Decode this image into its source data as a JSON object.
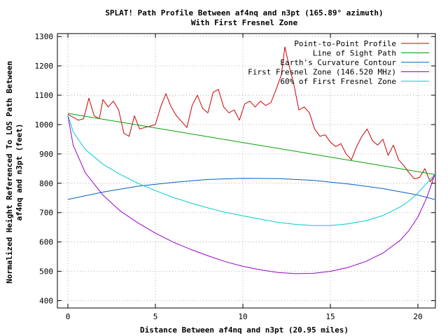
{
  "chart_data": {
    "type": "line",
    "title": "SPLAT! Path Profile Between af4nq and n3pt (165.89° azimuth)",
    "subtitle": "With First Fresnel Zone",
    "xlabel": "Distance Between af4nq and n3pt (20.95 miles)",
    "ylabel_lines": [
      "Normalized Height Referenced To LOS Path Between",
      "af4nq and n3pt (feet)"
    ],
    "xlim": [
      -0.6,
      21.0
    ],
    "ylim": [
      375,
      1310
    ],
    "x_ticks": [
      0,
      5,
      10,
      15,
      20
    ],
    "y_ticks": [
      400,
      500,
      600,
      700,
      800,
      900,
      1000,
      1100,
      1200,
      1300
    ],
    "grid": true,
    "legend_position": "top-right",
    "series": [
      {
        "name": "Point-to-Point Profile",
        "color": "#cc0000",
        "x": [
          0,
          0.3,
          0.6,
          0.9,
          1.2,
          1.5,
          1.8,
          2.0,
          2.3,
          2.6,
          2.9,
          3.2,
          3.5,
          3.8,
          4.1,
          4.4,
          4.7,
          5.0,
          5.3,
          5.6,
          5.9,
          6.2,
          6.5,
          6.8,
          7.1,
          7.4,
          7.7,
          8.0,
          8.3,
          8.6,
          8.9,
          9.2,
          9.5,
          9.8,
          10.1,
          10.4,
          10.7,
          11.0,
          11.3,
          11.6,
          11.9,
          12.2,
          12.4,
          12.6,
          12.9,
          13.2,
          13.5,
          13.8,
          14.1,
          14.4,
          14.7,
          15.0,
          15.3,
          15.6,
          15.9,
          16.2,
          16.5,
          16.8,
          17.1,
          17.4,
          17.7,
          18.0,
          18.3,
          18.6,
          18.9,
          19.2,
          19.5,
          19.8,
          20.1,
          20.4,
          20.7,
          20.95
        ],
        "y": [
          1035,
          1025,
          1015,
          1020,
          1090,
          1030,
          1020,
          1085,
          1060,
          1080,
          1050,
          970,
          960,
          1030,
          985,
          990,
          995,
          1000,
          1060,
          1105,
          1060,
          1030,
          1010,
          990,
          1065,
          1100,
          1055,
          1040,
          1110,
          1120,
          1060,
          1040,
          1050,
          1015,
          1070,
          1080,
          1060,
          1080,
          1065,
          1075,
          1120,
          1170,
          1265,
          1210,
          1140,
          1050,
          1060,
          1040,
          985,
          960,
          965,
          940,
          925,
          935,
          900,
          880,
          925,
          960,
          985,
          945,
          930,
          950,
          895,
          930,
          880,
          860,
          835,
          815,
          820,
          850,
          805,
          825
        ]
      },
      {
        "name": "Line of Sight Path",
        "color": "#00a000",
        "x": [
          0,
          20.95
        ],
        "y": [
          1038,
          830
        ]
      },
      {
        "name": "Earth's Curvature Contour",
        "color": "#0060c0",
        "x": [
          0,
          2,
          4,
          6,
          8,
          10,
          12,
          14,
          16,
          18,
          20,
          20.95
        ],
        "y": [
          745,
          770,
          790,
          803,
          813,
          817,
          816,
          810,
          798,
          782,
          760,
          745
        ]
      },
      {
        "name": "First Fresnel Zone (146.520 MHz)",
        "color": "#9900cc",
        "x": [
          0,
          0.3,
          1,
          2,
          3,
          4,
          5,
          6,
          7,
          8,
          9,
          10,
          11,
          12,
          13,
          14,
          15,
          16,
          17,
          18,
          19,
          19.5,
          20,
          20.5,
          20.8,
          20.95
        ],
        "y": [
          1030,
          930,
          835,
          760,
          705,
          665,
          630,
          600,
          575,
          553,
          533,
          517,
          505,
          496,
          492,
          493,
          500,
          513,
          533,
          562,
          606,
          640,
          685,
          750,
          800,
          830
        ]
      },
      {
        "name": "60% of First Fresnel Zone",
        "color": "#00cccc",
        "x": [
          0,
          0.3,
          1,
          2,
          3,
          4,
          5,
          6,
          7,
          8,
          9,
          10,
          11,
          12,
          13,
          14,
          15,
          16,
          17,
          18,
          19,
          19.5,
          20,
          20.5,
          20.8,
          20.95
        ],
        "y": [
          1032,
          975,
          915,
          865,
          830,
          800,
          775,
          752,
          733,
          716,
          701,
          689,
          678,
          667,
          660,
          656,
          656,
          662,
          672,
          690,
          720,
          740,
          767,
          800,
          820,
          830
        ]
      }
    ]
  }
}
